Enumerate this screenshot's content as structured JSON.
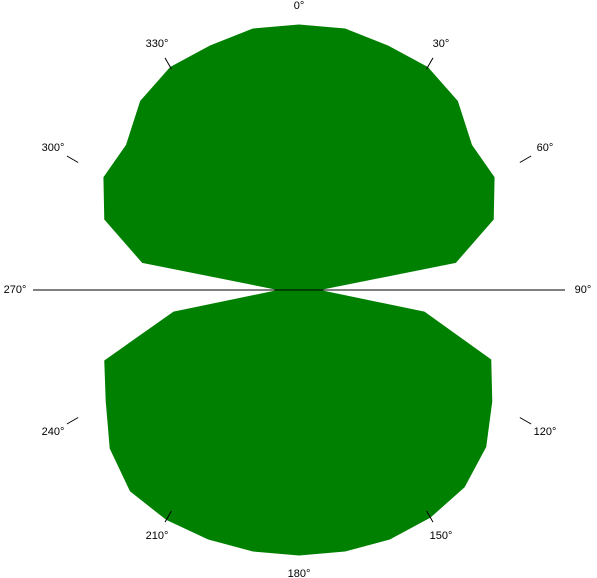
{
  "chart_data": {
    "type": "polar-area",
    "title": "",
    "angle_unit": "degrees",
    "zero_direction": "top",
    "rotation": "clockwise",
    "angular_ticks": [
      {
        "angle": 0,
        "label": "0°"
      },
      {
        "angle": 30,
        "label": "30°"
      },
      {
        "angle": 60,
        "label": "60°"
      },
      {
        "angle": 90,
        "label": "90°"
      },
      {
        "angle": 120,
        "label": "120°"
      },
      {
        "angle": 150,
        "label": "150°"
      },
      {
        "angle": 180,
        "label": "180°"
      },
      {
        "angle": 210,
        "label": "210°"
      },
      {
        "angle": 240,
        "label": "240°"
      },
      {
        "angle": 270,
        "label": "270°"
      },
      {
        "angle": 300,
        "label": "300°"
      },
      {
        "angle": 330,
        "label": "330°"
      }
    ],
    "r_range": [
      0,
      1
    ],
    "series": [
      {
        "color": "#008000",
        "points": [
          [
            0,
            1.0
          ],
          [
            10,
            1.0
          ],
          [
            20,
            0.98
          ],
          [
            30,
            0.97
          ],
          [
            40,
            0.93
          ],
          [
            50,
            0.85
          ],
          [
            60,
            0.85
          ],
          [
            70,
            0.78
          ],
          [
            80,
            0.6
          ],
          [
            90,
            0.07
          ],
          [
            100,
            0.48
          ],
          [
            110,
            0.77
          ],
          [
            120,
            0.84
          ],
          [
            130,
            0.92
          ],
          [
            140,
            0.97
          ],
          [
            150,
            0.99
          ],
          [
            160,
            1.0
          ],
          [
            170,
            1.0
          ],
          [
            180,
            1.0
          ],
          [
            190,
            1.0
          ],
          [
            200,
            1.0
          ],
          [
            210,
            1.0
          ],
          [
            220,
            0.99
          ],
          [
            230,
            0.93
          ],
          [
            240,
            0.84
          ],
          [
            250,
            0.78
          ],
          [
            260,
            0.48
          ],
          [
            270,
            0.07
          ],
          [
            280,
            0.6
          ],
          [
            290,
            0.78
          ],
          [
            300,
            0.85
          ],
          [
            310,
            0.85
          ],
          [
            320,
            0.93
          ],
          [
            330,
            0.97
          ],
          [
            340,
            0.98
          ],
          [
            350,
            1.0
          ]
        ]
      }
    ],
    "grid": false,
    "legend": "none"
  }
}
